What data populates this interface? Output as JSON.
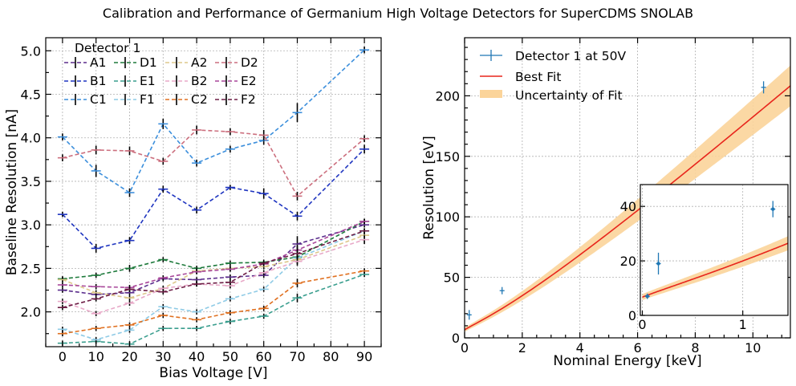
{
  "figure": {
    "suptitle": "Calibration and Performance of Germanium High Voltage Detectors for SuperCDMS SNOLAB"
  },
  "chart_data": [
    {
      "type": "line",
      "xlabel": "Bias Voltage [V]",
      "ylabel": "Baseline Resolution [nA]",
      "xlim": [
        -5,
        95
      ],
      "ylim": [
        1.6,
        5.15
      ],
      "xticks": [
        "0",
        "10",
        "20",
        "30",
        "40",
        "50",
        "60",
        "70",
        "80",
        "90"
      ],
      "yticks": [
        "2.0",
        "2.5",
        "3.0",
        "3.5",
        "4.0",
        "4.5",
        "5.0"
      ],
      "grid": true,
      "legend_title": "Detector 1",
      "legend_position": "top-left",
      "x": [
        0,
        10,
        20,
        30,
        40,
        50,
        60,
        70,
        90
      ],
      "series": [
        {
          "name": "A1",
          "color": "#5b2d8c",
          "values": [
            2.25,
            2.2,
            2.22,
            2.38,
            2.37,
            2.4,
            2.42,
            2.78,
            3.0
          ],
          "errors": [
            0.03,
            0.03,
            0.03,
            0.03,
            0.03,
            0.03,
            0.03,
            0.09,
            0.03
          ]
        },
        {
          "name": "B1",
          "color": "#1f35c0",
          "values": [
            3.12,
            2.73,
            2.82,
            3.41,
            3.17,
            3.43,
            3.36,
            3.1,
            3.87
          ],
          "errors": [
            0.03,
            0.05,
            0.04,
            0.04,
            0.04,
            0.03,
            0.06,
            0.05,
            0.05
          ]
        },
        {
          "name": "C1",
          "color": "#3c8fdc",
          "values": [
            4.01,
            3.62,
            3.37,
            4.16,
            3.71,
            3.87,
            3.97,
            4.29,
            5.01
          ],
          "errors": [
            0.04,
            0.07,
            0.05,
            0.06,
            0.04,
            0.04,
            0.05,
            0.11,
            0.04
          ]
        },
        {
          "name": "D1",
          "color": "#1e7a3c",
          "values": [
            2.38,
            2.42,
            2.5,
            2.6,
            2.5,
            2.56,
            2.57,
            2.63,
            3.04
          ],
          "errors": [
            0.03,
            0.03,
            0.04,
            0.03,
            0.03,
            0.03,
            0.03,
            0.03,
            0.03
          ]
        },
        {
          "name": "E1",
          "color": "#3a9e8e",
          "values": [
            1.64,
            1.66,
            1.63,
            1.81,
            1.81,
            1.89,
            1.95,
            2.16,
            2.43
          ],
          "errors": [
            0.03,
            0.03,
            0.03,
            0.03,
            0.03,
            0.03,
            0.03,
            0.05,
            0.03
          ]
        },
        {
          "name": "F1",
          "color": "#8fcbe6",
          "values": [
            1.8,
            1.68,
            1.79,
            2.06,
            2.0,
            2.15,
            2.26,
            2.62,
            2.93
          ],
          "errors": [
            0.03,
            0.03,
            0.03,
            0.03,
            0.03,
            0.03,
            0.03,
            0.05,
            0.03
          ]
        },
        {
          "name": "A2",
          "color": "#ddc88c",
          "values": [
            2.37,
            2.22,
            2.16,
            2.27,
            2.47,
            2.5,
            2.52,
            2.6,
            2.88
          ],
          "errors": [
            0.03,
            0.03,
            0.03,
            0.03,
            0.03,
            0.03,
            0.03,
            0.05,
            0.03
          ]
        },
        {
          "name": "B2",
          "color": "#e8a9c8",
          "values": [
            2.12,
            1.98,
            2.1,
            2.27,
            2.32,
            2.3,
            2.45,
            2.58,
            2.83
          ],
          "errors": [
            0.03,
            0.03,
            0.03,
            0.03,
            0.03,
            0.03,
            0.03,
            0.05,
            0.05
          ]
        },
        {
          "name": "C2",
          "color": "#e07020",
          "values": [
            1.75,
            1.81,
            1.85,
            1.96,
            1.91,
            1.99,
            2.04,
            2.33,
            2.47
          ],
          "errors": [
            0.03,
            0.03,
            0.03,
            0.03,
            0.03,
            0.03,
            0.03,
            0.05,
            0.03
          ]
        },
        {
          "name": "D2",
          "color": "#cc6f7e",
          "values": [
            3.77,
            3.86,
            3.85,
            3.73,
            4.09,
            4.07,
            4.03,
            3.33,
            3.99
          ],
          "errors": [
            0.04,
            0.05,
            0.05,
            0.04,
            0.05,
            0.04,
            0.06,
            0.05,
            0.04
          ]
        },
        {
          "name": "E2",
          "color": "#a8479a",
          "values": [
            2.31,
            2.29,
            2.28,
            2.39,
            2.46,
            2.49,
            2.55,
            2.71,
            3.04
          ],
          "errors": [
            0.03,
            0.03,
            0.03,
            0.03,
            0.03,
            0.03,
            0.03,
            0.05,
            0.03
          ]
        },
        {
          "name": "F2",
          "color": "#6e1e46",
          "values": [
            2.05,
            2.15,
            2.26,
            2.23,
            2.32,
            2.34,
            2.56,
            2.67,
            2.93
          ],
          "errors": [
            0.03,
            0.03,
            0.03,
            0.03,
            0.03,
            0.03,
            0.03,
            0.05,
            0.03
          ]
        }
      ]
    },
    {
      "type": "scatter",
      "xlabel": "Nominal Energy [keV]",
      "ylabel": "Resolution [eV]",
      "xlim": [
        0,
        11.3
      ],
      "ylim": [
        0,
        248
      ],
      "xticks": [
        "0",
        "2",
        "4",
        "6",
        "8",
        "10"
      ],
      "yticks": [
        "0",
        "50",
        "100",
        "150",
        "200"
      ],
      "grid": true,
      "legend_position": "top-left",
      "legend": [
        "Detector 1 at 50V",
        "Best Fit",
        "Uncertainty of Fit"
      ],
      "points": {
        "name": "Detector 1 at 50V",
        "color": "#1f77b4",
        "x": [
          0.16,
          1.3,
          10.37
        ],
        "y": [
          19,
          39,
          207
        ],
        "errors": [
          4,
          3,
          5
        ]
      },
      "fit": {
        "name": "Best Fit",
        "color": "#e8251c",
        "band_name": "Uncertainty of Fit",
        "band_color": "#fbd49a"
      },
      "inset": {
        "xlim": [
          -0.02,
          1.45
        ],
        "ylim": [
          0,
          48
        ],
        "xticks": [
          "0",
          "1"
        ],
        "yticks": [
          "0",
          "20",
          "40"
        ],
        "x": [
          0.05,
          0.16,
          1.3
        ],
        "y": [
          7,
          19,
          39
        ],
        "errors": [
          1,
          4,
          3
        ]
      }
    }
  ]
}
